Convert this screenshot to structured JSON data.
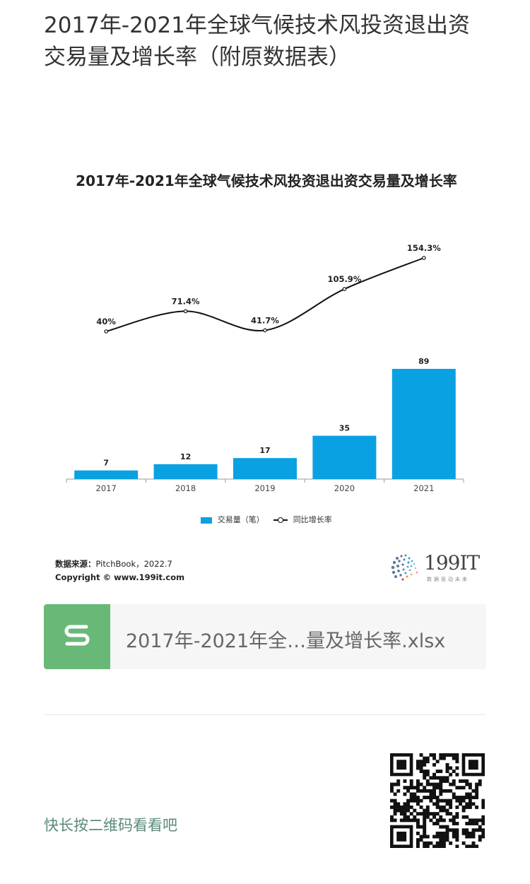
{
  "article": {
    "title": "2017年-2021年全球气候技术风投资退出资交易量及增长率（附原数据表）"
  },
  "chart_data": {
    "type": "bar",
    "title": "2017年-2021年全球气候技术风投资退出资交易量及增长率",
    "categories": [
      "2017",
      "2018",
      "2019",
      "2020",
      "2021"
    ],
    "series": [
      {
        "name": "交易量（笔）",
        "type": "bar",
        "color": "#0aa1e3",
        "values": [
          7,
          12,
          17,
          35,
          89
        ],
        "labels": [
          "7",
          "12",
          "17",
          "35",
          "89"
        ]
      },
      {
        "name": "同比增长率",
        "type": "line",
        "color": "#111111",
        "values": [
          40,
          71.4,
          41.7,
          105.9,
          154.3
        ],
        "labels": [
          "40%",
          "71.4%",
          "41.7%",
          "105.9%",
          "154.3%"
        ]
      }
    ],
    "legend": "bottom",
    "grid": false
  },
  "source": {
    "label": "数据来源：",
    "text": "PitchBook，2022.7",
    "copyright": "Copyright © www.199it.com"
  },
  "brand": {
    "name": "199IT",
    "tagline": "数据驱动未来"
  },
  "attachment": {
    "icon": "spreadsheet-s-icon",
    "file_name": "2017年-2021年全…量及增长率.xlsx"
  },
  "footer": {
    "qr_hint": "快长按二维码看看吧",
    "qr_icon": "qr-code-icon"
  }
}
